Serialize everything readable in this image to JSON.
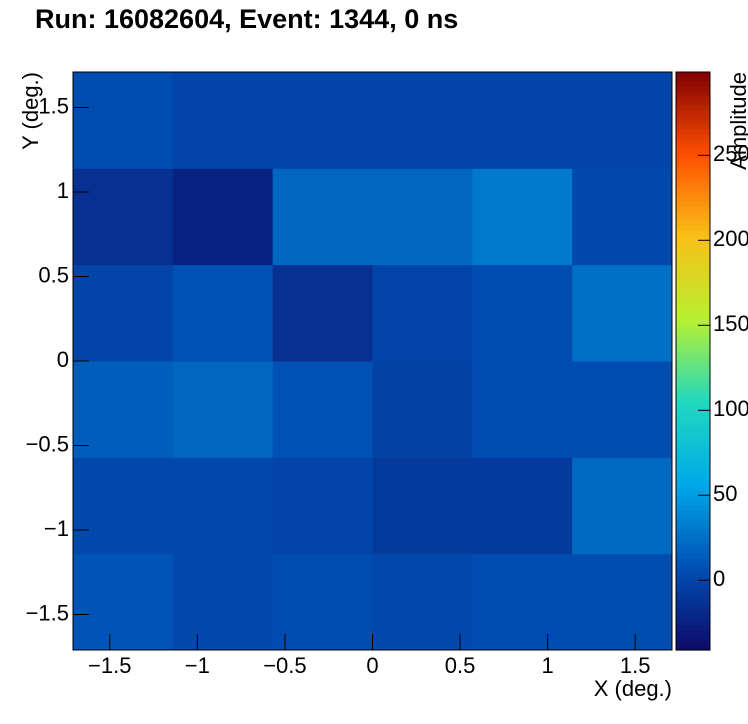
{
  "chart_data": {
    "type": "heatmap",
    "title": "Run: 16082604, Event: 1344, 0 ns",
    "x_label": "X (deg.)",
    "y_label": "Y (deg.)",
    "z_label": "Amplitude",
    "xbins": [
      -1.71,
      -1.14,
      -0.57,
      0,
      0.57,
      1.14,
      1.71
    ],
    "ybins": [
      -1.71,
      -1.14,
      -0.57,
      0,
      0.57,
      1.14,
      1.71
    ],
    "z": [
      [
        10,
        2,
        5,
        2,
        5,
        5
      ],
      [
        2,
        2,
        0,
        -8,
        -8,
        22
      ],
      [
        15,
        20,
        8,
        -2,
        5,
        5
      ],
      [
        0,
        8,
        -15,
        0,
        5,
        25
      ],
      [
        -15,
        -25,
        20,
        20,
        30,
        2
      ],
      [
        5,
        0,
        0,
        0,
        0,
        0
      ]
    ],
    "xlim": [
      -1.71,
      1.71
    ],
    "ylim": [
      -1.71,
      1.71
    ],
    "zlim": [
      -41,
      299
    ],
    "xticks": [
      {
        "value": -1.5,
        "label": "−1.5"
      },
      {
        "value": -1,
        "label": "−1"
      },
      {
        "value": -0.5,
        "label": "−0.5"
      },
      0,
      0.5,
      1,
      1.5
    ],
    "yticks": [
      {
        "value": -1.5,
        "label": "−1.5"
      },
      {
        "value": -1,
        "label": "−1"
      },
      {
        "value": -0.5,
        "label": "−0.5"
      },
      0,
      0.5,
      1,
      1.5
    ],
    "zticks": [
      0,
      50,
      100,
      150,
      200,
      250
    ],
    "colorscale": [
      "#0d0b6a",
      "#0050b4",
      "#00a8e8",
      "#20d8c0",
      "#b8f030",
      "#f8c018",
      "#ff5000",
      "#800000"
    ]
  }
}
